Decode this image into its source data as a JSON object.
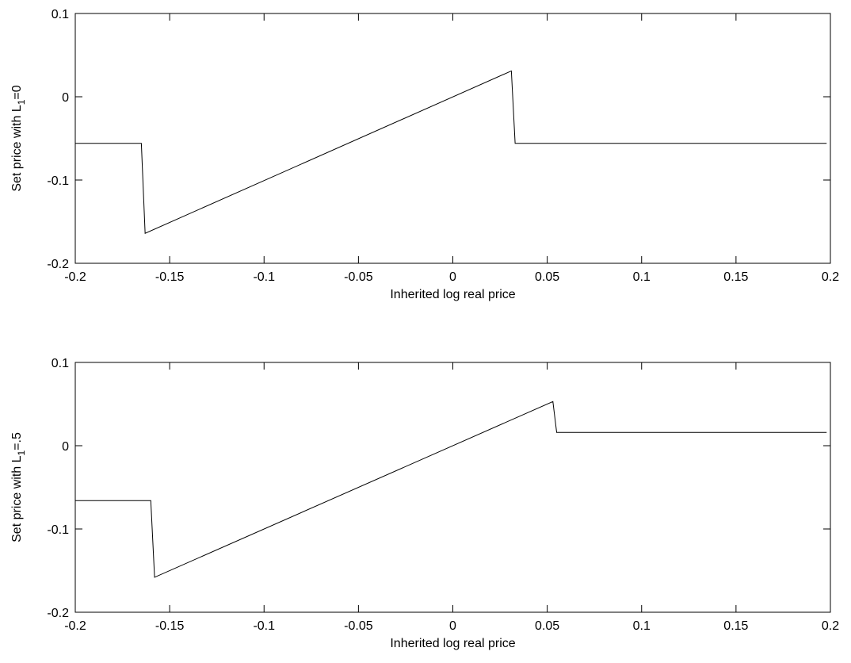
{
  "chart_data": [
    {
      "type": "line",
      "xlabel": "Inherited log real price",
      "ylabel": {
        "prefix": "Set price with L",
        "subscript": "1",
        "suffix": "=0"
      },
      "xlim": [
        -0.2,
        0.2
      ],
      "ylim": [
        -0.2,
        0.1
      ],
      "xticks": [
        -0.2,
        -0.15,
        -0.1,
        -0.05,
        0,
        0.05,
        0.1,
        0.15,
        0.2
      ],
      "xtick_labels": [
        "-0.2",
        "-0.15",
        "-0.1",
        "-0.05",
        "0",
        "0.05",
        "0.1",
        "0.15",
        "0.2"
      ],
      "yticks": [
        -0.2,
        -0.1,
        0,
        0.1
      ],
      "ytick_labels": [
        "-0.2",
        "-0.1",
        "0",
        "0.1"
      ],
      "grid": false,
      "line_color": "#000000",
      "x": [
        -0.2,
        -0.165,
        -0.163,
        0.031,
        0.033,
        0.198
      ],
      "y": [
        -0.056,
        -0.056,
        -0.164,
        0.031,
        -0.056,
        -0.056
      ]
    },
    {
      "type": "line",
      "xlabel": "Inherited log real price",
      "ylabel": {
        "prefix": "Set price with L",
        "subscript": "1",
        "suffix": "=.5"
      },
      "xlim": [
        -0.2,
        0.2
      ],
      "ylim": [
        -0.2,
        0.1
      ],
      "xticks": [
        -0.2,
        -0.15,
        -0.1,
        -0.05,
        0,
        0.05,
        0.1,
        0.15,
        0.2
      ],
      "xtick_labels": [
        "-0.2",
        "-0.15",
        "-0.1",
        "-0.05",
        "0",
        "0.05",
        "0.1",
        "0.15",
        "0.2"
      ],
      "yticks": [
        -0.2,
        -0.1,
        0,
        0.1
      ],
      "ytick_labels": [
        "-0.2",
        "-0.1",
        "0",
        "0.1"
      ],
      "grid": false,
      "line_color": "#000000",
      "x": [
        -0.2,
        -0.16,
        -0.158,
        0.053,
        0.055,
        0.198
      ],
      "y": [
        -0.066,
        -0.066,
        -0.158,
        0.053,
        0.016,
        0.016
      ]
    }
  ]
}
